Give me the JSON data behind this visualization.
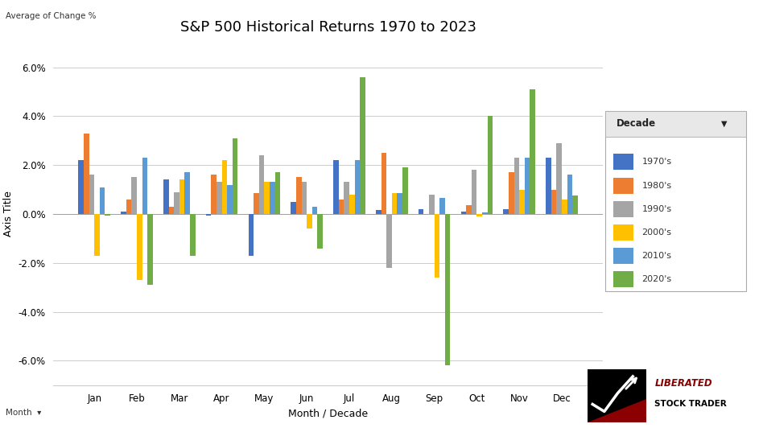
{
  "title": "S&P 500 Historical Returns 1970 to 2023",
  "xlabel": "Month / Decade",
  "ylabel": "Axis Title",
  "ylim": [
    -7.0,
    7.0
  ],
  "yticks": [
    -6.0,
    -4.0,
    -2.0,
    0.0,
    2.0,
    4.0,
    6.0
  ],
  "months": [
    "Jan",
    "Feb",
    "Mar",
    "Apr",
    "May",
    "Jun",
    "Jul",
    "Aug",
    "Sep",
    "Oct",
    "Nov",
    "Dec"
  ],
  "decades": [
    "1970's",
    "1980's",
    "1990's",
    "2000's",
    "2010's",
    "2020's"
  ],
  "colors": [
    "#4472C4",
    "#ED7D31",
    "#A5A5A5",
    "#FFC000",
    "#5B9BD5",
    "#70AD47"
  ],
  "data": {
    "1970's": [
      2.2,
      0.1,
      1.4,
      -0.05,
      -1.7,
      0.5,
      2.2,
      0.15,
      0.2,
      0.1,
      0.2,
      2.3
    ],
    "1980's": [
      3.3,
      0.6,
      0.3,
      1.6,
      0.85,
      1.5,
      0.6,
      2.5,
      0.0,
      0.35,
      1.7,
      1.0
    ],
    "1990's": [
      1.6,
      1.5,
      0.9,
      1.3,
      2.4,
      1.3,
      1.3,
      -2.2,
      0.8,
      1.8,
      2.3,
      2.9
    ],
    "2000's": [
      -1.7,
      -2.7,
      1.4,
      2.2,
      1.3,
      -0.6,
      0.8,
      0.85,
      -2.6,
      -0.1,
      1.0,
      0.6
    ],
    "2010's": [
      1.1,
      2.3,
      1.7,
      1.2,
      1.3,
      0.3,
      2.2,
      0.85,
      0.65,
      0.05,
      2.3,
      1.6
    ],
    "2020's": [
      -0.05,
      -2.9,
      -1.7,
      3.1,
      1.7,
      -1.4,
      5.6,
      1.9,
      -6.2,
      4.0,
      5.1,
      0.75
    ]
  },
  "background_color": "#FFFFFF",
  "grid_color": "#CCCCCC",
  "top_left_label": "Average of Change %",
  "bottom_left_label": "Month",
  "title_fontsize": 13,
  "axis_label_fontsize": 9,
  "tick_fontsize": 8.5,
  "bar_width": 0.125
}
